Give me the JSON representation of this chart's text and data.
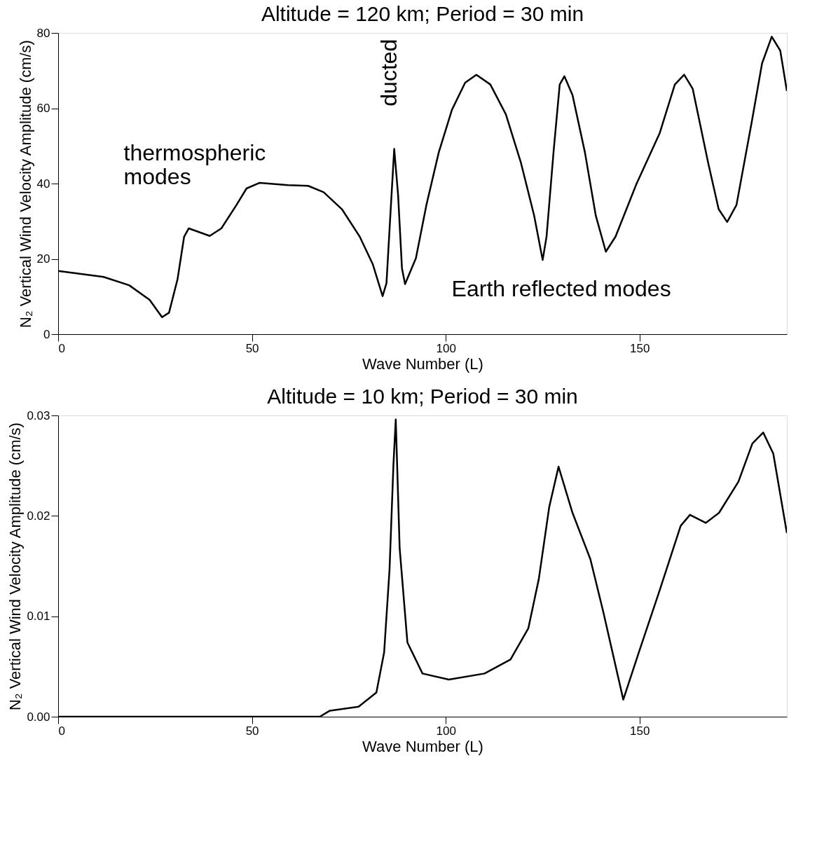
{
  "chart_data": [
    {
      "type": "line",
      "title": "Altitude  = 120 km; Period = 30 min",
      "xlabel": "Wave Number (L)",
      "ylabel": "N₂ Vertical Wind Velocity Amplitude (cm/s)",
      "xlim": [
        0,
        188
      ],
      "ylim": [
        0,
        80
      ],
      "xticks": [
        0,
        50,
        100,
        150
      ],
      "yticks": [
        0,
        20,
        40,
        60,
        80
      ],
      "grid": false,
      "series": [
        {
          "color": "#000000",
          "x": [
            0,
            11.7,
            18.3,
            23.6,
            26.8,
            28.6,
            30.8,
            32.5,
            33.7,
            39.1,
            42.1,
            46,
            48.6,
            52,
            59.3,
            64.5,
            68.5,
            73.2,
            77.8,
            81.2,
            83.7,
            84.7,
            85.7,
            86.7,
            87.7,
            88.7,
            89.5,
            92.3,
            95,
            98.2,
            101.6,
            105,
            107.9,
            111.5,
            115.5,
            119.4,
            122.8,
            125,
            126,
            127.8,
            129.4,
            130.6,
            132.7,
            135.9,
            138.7,
            141.3,
            143.8,
            149.2,
            155.2,
            159.1,
            161.5,
            163.7,
            167.7,
            170.4,
            172.6,
            175,
            179,
            181.6,
            184.1,
            186.3,
            188
          ],
          "values": [
            16.8,
            15.2,
            13,
            9.1,
            4.5,
            5.7,
            14.6,
            25.9,
            28.1,
            26.1,
            28.1,
            34.3,
            38.7,
            40.2,
            39.6,
            39.4,
            37.7,
            33.2,
            25.9,
            18.5,
            10.1,
            13.5,
            31.5,
            49.2,
            37,
            17.5,
            13.3,
            20.2,
            34.3,
            48.3,
            59.6,
            66.8,
            68.9,
            66.3,
            58.4,
            45.5,
            31.5,
            19.7,
            25.9,
            48.3,
            66.3,
            68.5,
            63.5,
            48.3,
            31.5,
            21.9,
            25.9,
            39.9,
            53.4,
            66.3,
            68.9,
            65.2,
            45.5,
            33.2,
            29.8,
            34.3,
            56.7,
            71.9,
            79,
            75.3,
            64.6
          ]
        }
      ],
      "annotations": [
        "thermospheric\nmodes",
        "ducted",
        "Earth reflected modes"
      ]
    },
    {
      "type": "line",
      "title": "Altitude  = 10 km; Period = 30 min",
      "xlabel": "Wave Number (L)",
      "ylabel": "N₂ Vertical Wind Velocity Amplitude (cm/s)",
      "xlim": [
        0,
        188
      ],
      "ylim": [
        0,
        0.03
      ],
      "xticks": [
        0,
        50,
        100,
        150
      ],
      "yticks": [
        {
          "value": 0,
          "label": "0.00"
        },
        {
          "value": 0.01,
          "label": "0.01"
        },
        {
          "value": 0.02,
          "label": "0.02"
        },
        {
          "value": 0.03,
          "label": "0.03"
        }
      ],
      "grid": false,
      "series": [
        {
          "color": "#000000",
          "x": [
            0,
            67.5,
            70.1,
            77.5,
            82.1,
            84.1,
            85.5,
            86.5,
            87.1,
            88.1,
            90.1,
            94,
            100.8,
            110,
            116.7,
            121.3,
            124,
            126.7,
            129.1,
            132.7,
            137.3,
            140.6,
            145.8,
            149.8,
            155.2,
            160.6,
            163,
            167.1,
            170.5,
            175.5,
            179.1,
            181.9,
            184.5,
            188
          ],
          "values": [
            0,
            0,
            0.0006,
            0.001,
            0.0024,
            0.0064,
            0.0147,
            0.0251,
            0.0296,
            0.0168,
            0.0074,
            0.0043,
            0.0037,
            0.0043,
            0.0057,
            0.0088,
            0.0137,
            0.0209,
            0.0249,
            0.0203,
            0.0157,
            0.0105,
            0.0017,
            0.0064,
            0.0126,
            0.019,
            0.0201,
            0.0193,
            0.0203,
            0.0234,
            0.0272,
            0.0283,
            0.0262,
            0.0183
          ]
        }
      ]
    }
  ]
}
